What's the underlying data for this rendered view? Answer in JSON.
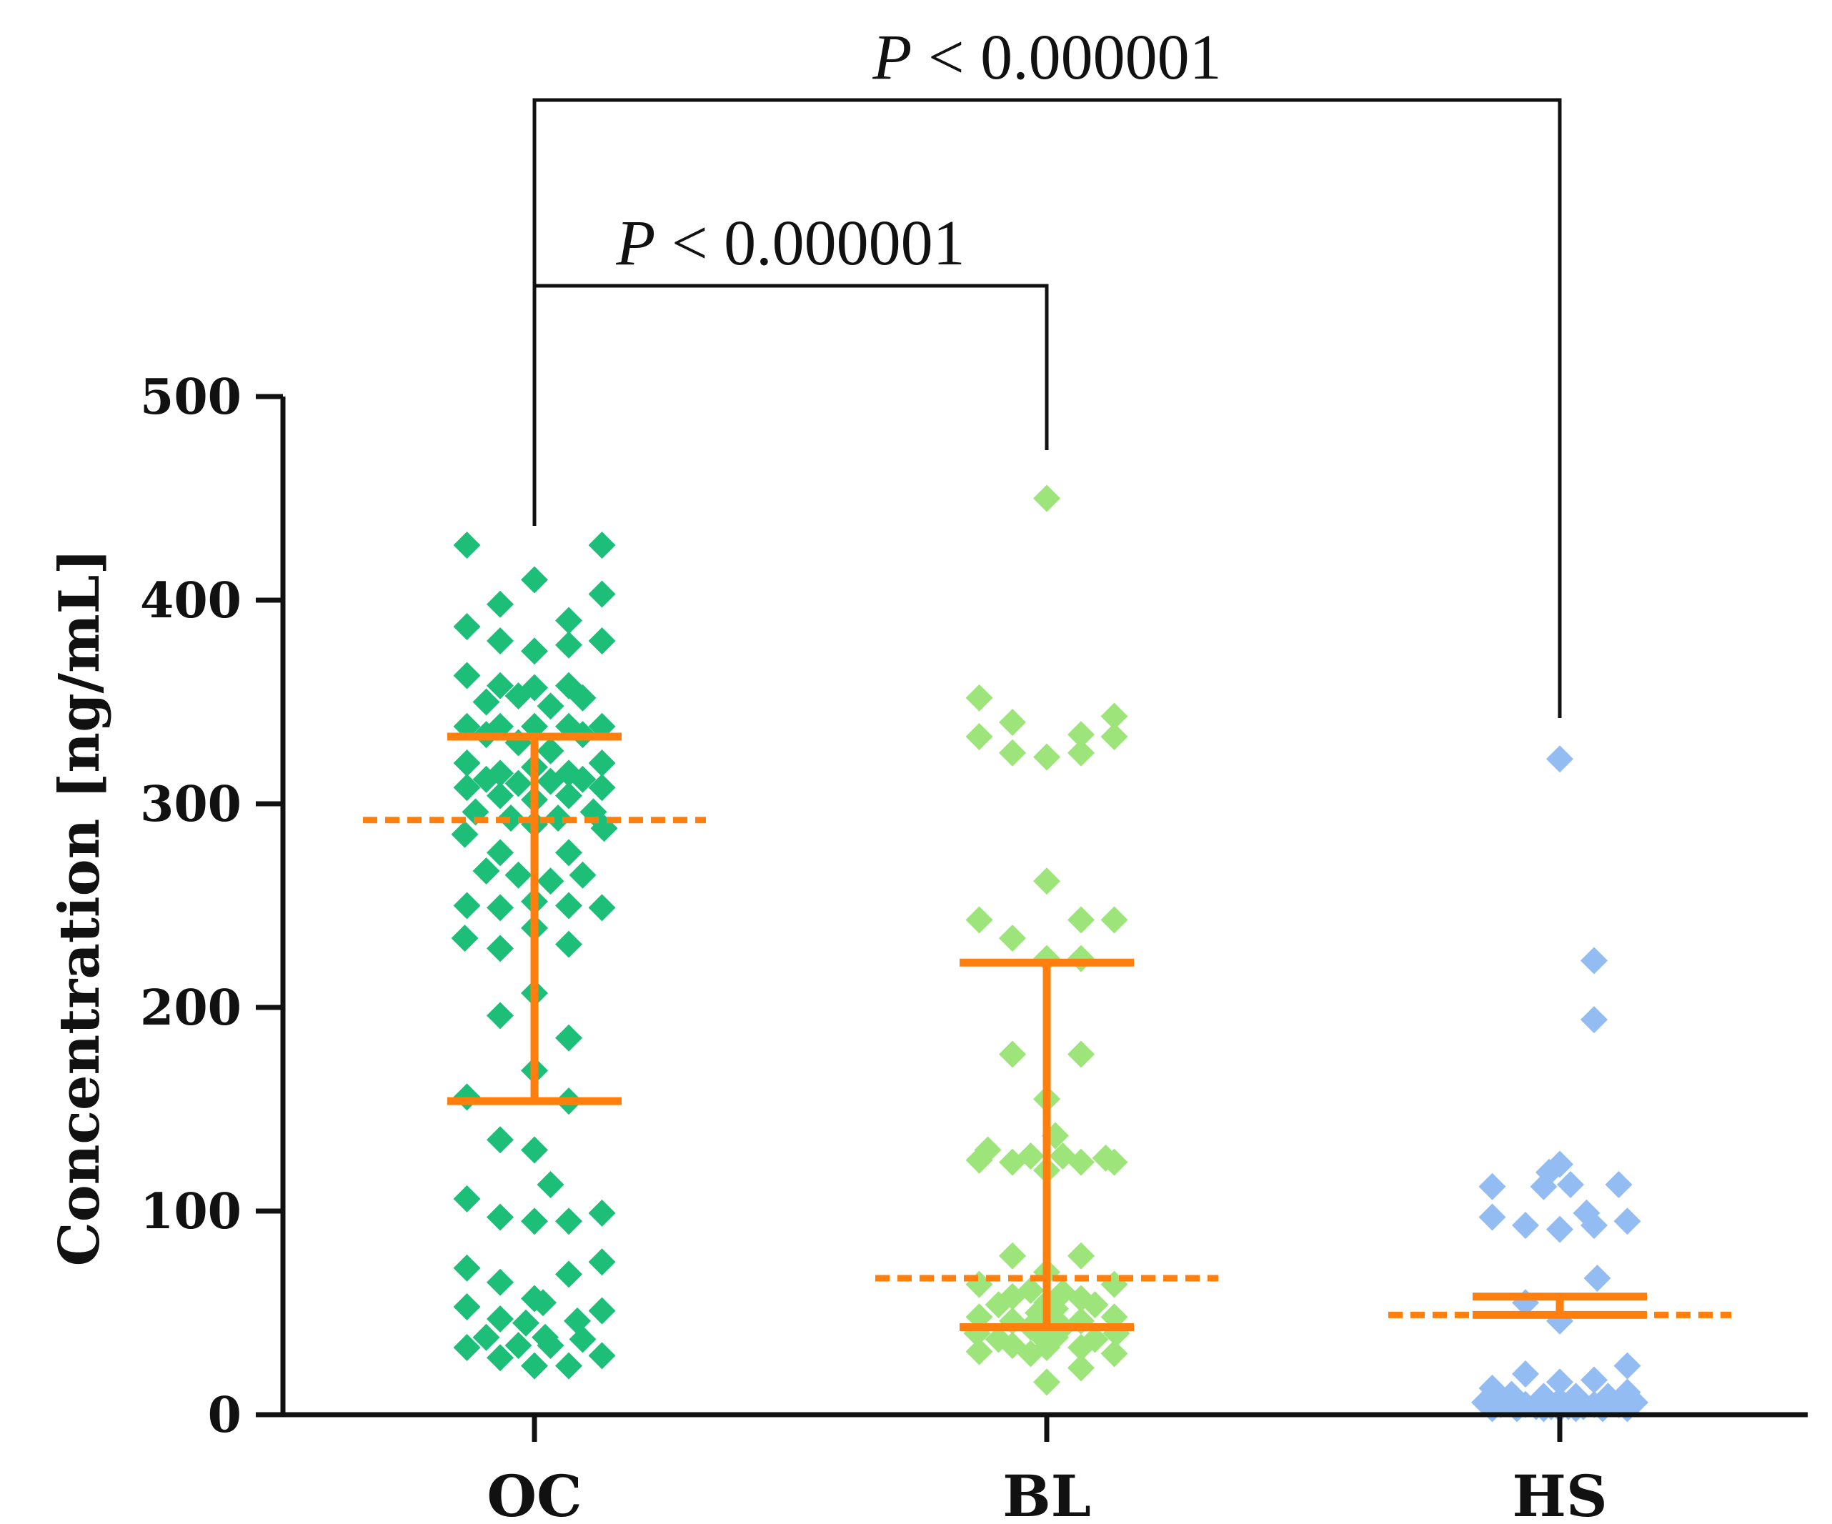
{
  "chart_data": {
    "type": "scatter",
    "title": "",
    "xlabel": "",
    "ylabel": "Concentration [ng/mL]",
    "ylim": [
      0,
      500
    ],
    "yticks": [
      0,
      100,
      200,
      300,
      400,
      500
    ],
    "categories": [
      "OC",
      "BL",
      "HS"
    ],
    "grid": false,
    "legend": "none",
    "colors": {
      "OC": "#1dbf78",
      "BL": "#9de57a",
      "HS": "#93bcf3",
      "summary": "#ff7f0e",
      "axis": "#111111"
    },
    "series": [
      {
        "name": "OC",
        "median": 292,
        "iqr": [
          154,
          333
        ],
        "points": [
          [
            -0.63,
            427
          ],
          [
            0.63,
            427
          ],
          [
            0.0,
            410
          ],
          [
            -0.32,
            398
          ],
          [
            0.63,
            403
          ],
          [
            -0.63,
            387
          ],
          [
            -0.32,
            380
          ],
          [
            0.0,
            375
          ],
          [
            0.32,
            378
          ],
          [
            0.63,
            380
          ],
          [
            0.32,
            390
          ],
          [
            -0.63,
            363
          ],
          [
            -0.32,
            358
          ],
          [
            0.0,
            357
          ],
          [
            0.32,
            358
          ],
          [
            -0.45,
            350
          ],
          [
            0.45,
            352
          ],
          [
            0.15,
            348
          ],
          [
            -0.15,
            353
          ],
          [
            -0.63,
            338
          ],
          [
            -0.32,
            338
          ],
          [
            0.0,
            338
          ],
          [
            0.32,
            338
          ],
          [
            0.63,
            338
          ],
          [
            -0.45,
            334
          ],
          [
            0.45,
            334
          ],
          [
            -0.15,
            330
          ],
          [
            0.15,
            326
          ],
          [
            -0.63,
            320
          ],
          [
            0.63,
            320
          ],
          [
            -0.32,
            315
          ],
          [
            0.32,
            315
          ],
          [
            0.0,
            318
          ],
          [
            -0.45,
            312
          ],
          [
            0.45,
            312
          ],
          [
            -0.15,
            310
          ],
          [
            0.15,
            311
          ],
          [
            -0.63,
            308
          ],
          [
            0.63,
            308
          ],
          [
            -0.32,
            304
          ],
          [
            0.32,
            304
          ],
          [
            0.0,
            302
          ],
          [
            -0.55,
            296
          ],
          [
            0.55,
            296
          ],
          [
            -0.22,
            293
          ],
          [
            0.22,
            293
          ],
          [
            -0.65,
            285
          ],
          [
            0.65,
            288
          ],
          [
            0.0,
            290
          ],
          [
            -0.32,
            276
          ],
          [
            0.32,
            276
          ],
          [
            -0.15,
            265
          ],
          [
            0.15,
            262
          ],
          [
            -0.45,
            267
          ],
          [
            0.45,
            265
          ],
          [
            -0.63,
            250
          ],
          [
            -0.32,
            249
          ],
          [
            0.0,
            252
          ],
          [
            0.32,
            250
          ],
          [
            0.63,
            249
          ],
          [
            -0.65,
            234
          ],
          [
            -0.32,
            229
          ],
          [
            0.0,
            239
          ],
          [
            0.32,
            231
          ],
          [
            0.0,
            207
          ],
          [
            -0.32,
            196
          ],
          [
            0.32,
            185
          ],
          [
            0.0,
            169
          ],
          [
            -0.63,
            156
          ],
          [
            0.32,
            154
          ],
          [
            -0.32,
            135
          ],
          [
            0.0,
            130
          ],
          [
            0.15,
            113
          ],
          [
            -0.63,
            106
          ],
          [
            0.63,
            99
          ],
          [
            -0.32,
            97
          ],
          [
            0.0,
            95
          ],
          [
            0.32,
            95
          ],
          [
            -0.63,
            72
          ],
          [
            0.63,
            75
          ],
          [
            0.32,
            69
          ],
          [
            -0.32,
            65
          ],
          [
            0.0,
            57
          ],
          [
            0.08,
            55
          ],
          [
            -0.63,
            53
          ],
          [
            0.63,
            51
          ],
          [
            -0.32,
            47
          ],
          [
            0.4,
            46
          ],
          [
            -0.08,
            45
          ],
          [
            0.1,
            38
          ],
          [
            -0.45,
            38
          ],
          [
            0.45,
            37
          ],
          [
            0.15,
            34
          ],
          [
            -0.63,
            33
          ],
          [
            -0.15,
            34
          ],
          [
            0.63,
            29
          ],
          [
            -0.32,
            28
          ],
          [
            0.0,
            24
          ],
          [
            0.32,
            24
          ]
        ]
      },
      {
        "name": "BL",
        "median": 67,
        "iqr": [
          43,
          222
        ],
        "points": [
          [
            0.0,
            450
          ],
          [
            -0.63,
            352
          ],
          [
            -0.32,
            340
          ],
          [
            0.63,
            343
          ],
          [
            0.0,
            323
          ],
          [
            0.32,
            325
          ],
          [
            -0.63,
            333
          ],
          [
            0.63,
            333
          ],
          [
            -0.32,
            325
          ],
          [
            0.32,
            334
          ],
          [
            0.0,
            262
          ],
          [
            -0.63,
            243
          ],
          [
            0.32,
            243
          ],
          [
            0.63,
            243
          ],
          [
            -0.32,
            234
          ],
          [
            0.0,
            224
          ],
          [
            0.32,
            224
          ],
          [
            -0.32,
            177
          ],
          [
            0.32,
            177
          ],
          [
            0.0,
            155
          ],
          [
            0.08,
            137
          ],
          [
            -0.55,
            130
          ],
          [
            0.55,
            126
          ],
          [
            -0.63,
            125
          ],
          [
            0.63,
            124
          ],
          [
            -0.32,
            124
          ],
          [
            0.32,
            124
          ],
          [
            -0.15,
            127
          ],
          [
            0.15,
            127
          ],
          [
            0.0,
            120
          ],
          [
            -0.32,
            78
          ],
          [
            0.32,
            78
          ],
          [
            0.0,
            70
          ],
          [
            -0.63,
            64
          ],
          [
            0.63,
            64
          ],
          [
            -0.15,
            61
          ],
          [
            0.15,
            60
          ],
          [
            -0.32,
            58
          ],
          [
            0.32,
            57
          ],
          [
            0.0,
            55
          ],
          [
            -0.45,
            54
          ],
          [
            0.45,
            54
          ],
          [
            0.08,
            52
          ],
          [
            -0.08,
            50
          ],
          [
            -0.63,
            48
          ],
          [
            0.63,
            48
          ],
          [
            -0.32,
            46
          ],
          [
            0.32,
            46
          ],
          [
            0.0,
            45
          ],
          [
            -0.15,
            43
          ],
          [
            0.15,
            43
          ],
          [
            -0.65,
            40
          ],
          [
            0.65,
            40
          ],
          [
            -0.45,
            37
          ],
          [
            0.45,
            37
          ],
          [
            -0.08,
            40
          ],
          [
            0.08,
            38
          ],
          [
            -0.32,
            34
          ],
          [
            0.32,
            33
          ],
          [
            0.0,
            33
          ],
          [
            -0.63,
            31
          ],
          [
            0.63,
            30
          ],
          [
            -0.15,
            30
          ],
          [
            0.32,
            23
          ],
          [
            0.0,
            16
          ]
        ]
      },
      {
        "name": "HS",
        "median": 49,
        "iqr": [
          49,
          58
        ],
        "points": [
          [
            0.0,
            322
          ],
          [
            0.32,
            223
          ],
          [
            0.32,
            194
          ],
          [
            0.0,
            123
          ],
          [
            -0.1,
            119
          ],
          [
            -0.63,
            112
          ],
          [
            -0.15,
            112
          ],
          [
            0.1,
            113
          ],
          [
            0.55,
            113
          ],
          [
            0.25,
            99
          ],
          [
            -0.63,
            97
          ],
          [
            -0.32,
            93
          ],
          [
            0.0,
            91
          ],
          [
            0.32,
            93
          ],
          [
            0.63,
            95
          ],
          [
            0.35,
            67
          ],
          [
            -0.32,
            55
          ],
          [
            0.0,
            46
          ],
          [
            0.63,
            24
          ],
          [
            -0.32,
            20
          ],
          [
            0.0,
            16
          ],
          [
            0.32,
            17
          ],
          [
            -0.63,
            13
          ],
          [
            0.63,
            11
          ],
          [
            -0.45,
            10
          ],
          [
            0.45,
            9
          ],
          [
            -0.15,
            9
          ],
          [
            0.15,
            9
          ],
          [
            0.0,
            7
          ],
          [
            -0.7,
            6
          ],
          [
            0.7,
            6
          ],
          [
            -0.55,
            5
          ],
          [
            0.55,
            5
          ],
          [
            -0.32,
            5
          ],
          [
            0.32,
            5
          ],
          [
            -0.22,
            4
          ],
          [
            0.22,
            4
          ],
          [
            -0.08,
            4
          ],
          [
            0.08,
            4
          ],
          [
            -0.63,
            3
          ],
          [
            0.63,
            3
          ],
          [
            -0.4,
            3
          ],
          [
            0.4,
            3
          ],
          [
            0.0,
            3
          ],
          [
            -0.15,
            3
          ],
          [
            0.15,
            3
          ]
        ]
      }
    ],
    "annotations": [
      {
        "from": "OC",
        "to": "BL",
        "prefix": "P",
        "text": " < 0.000001",
        "level": "lower"
      },
      {
        "from": "OC",
        "to": "HS",
        "prefix": "P",
        "text": " < 0.000001",
        "level": "upper"
      }
    ]
  }
}
